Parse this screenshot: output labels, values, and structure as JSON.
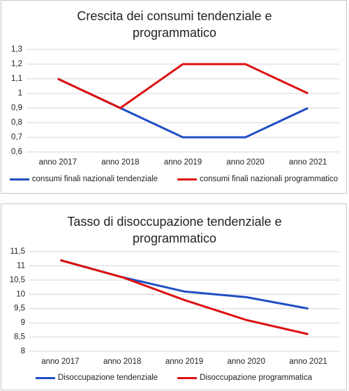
{
  "chart_data": [
    {
      "type": "line",
      "title": "Crescita dei consumi tendenziale e programmatico",
      "categories": [
        "anno 2017",
        "anno 2018",
        "anno 2019",
        "anno 2020",
        "anno 2021"
      ],
      "series": [
        {
          "name": "consumi finali nazionali tendenziale",
          "color": "#1f4fc4",
          "values": [
            1.1,
            0.9,
            0.7,
            0.7,
            0.9
          ]
        },
        {
          "name": "consumi finali nazionali programmatico",
          "color": "#dd1111",
          "values": [
            1.1,
            0.9,
            1.2,
            1.2,
            1.0
          ]
        }
      ],
      "ylim": [
        0.6,
        1.3
      ],
      "yticks": [
        {
          "value": 0.6,
          "label": "0,6"
        },
        {
          "value": 0.7,
          "label": "0,7"
        },
        {
          "value": 0.8,
          "label": "0,8"
        },
        {
          "value": 0.9,
          "label": "0,9"
        },
        1,
        {
          "value": 1.1,
          "label": "1,1"
        },
        {
          "value": 1.2,
          "label": "1,2"
        },
        {
          "value": 1.3,
          "label": "1,3"
        }
      ],
      "grid": true,
      "legend": "bottom"
    },
    {
      "type": "line",
      "title": "Tasso di disoccupazione tendenziale e programmatico",
      "categories": [
        "anno 2017",
        "anno 2018",
        "anno 2019",
        "anno 2020",
        "anno 2021"
      ],
      "series": [
        {
          "name": "Disoccupazione tendenziale",
          "color": "#1f4fc4",
          "values": [
            11.2,
            10.6,
            10.1,
            9.9,
            9.5
          ]
        },
        {
          "name": "Disoccupazione programmatica",
          "color": "#dd1111",
          "values": [
            11.2,
            10.6,
            9.8,
            9.1,
            8.6
          ]
        }
      ],
      "ylim": [
        8,
        11.5
      ],
      "yticks": [
        8,
        {
          "value": 8.5,
          "label": "8,5"
        },
        9,
        {
          "value": 9.5,
          "label": "9,5"
        },
        10,
        {
          "value": 10.5,
          "label": "10,5"
        },
        11,
        {
          "value": 11.5,
          "label": "11,5"
        }
      ],
      "grid": true,
      "legend": "bottom"
    }
  ]
}
